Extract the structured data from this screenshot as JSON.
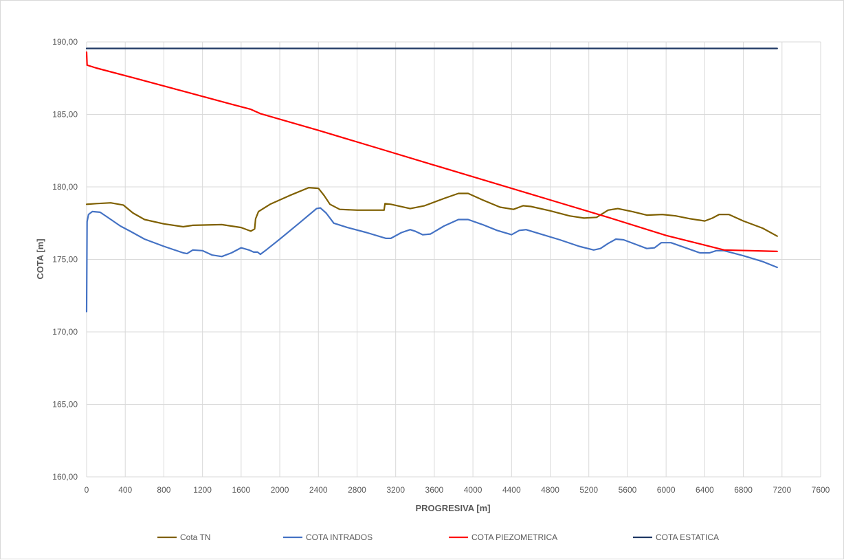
{
  "chart_data": {
    "type": "line",
    "xlabel": "PROGRESIVA [m]",
    "ylabel": "COTA [m]",
    "xlim": [
      0,
      7600
    ],
    "ylim": [
      160,
      190
    ],
    "x_ticks": [
      "0",
      "400",
      "800",
      "1200",
      "1600",
      "2000",
      "2400",
      "2800",
      "3200",
      "3600",
      "4000",
      "4400",
      "4800",
      "5200",
      "5600",
      "6000",
      "6400",
      "6800",
      "7200",
      "7600"
    ],
    "y_ticks": [
      "160,00",
      "165,00",
      "170,00",
      "175,00",
      "180,00",
      "185,00",
      "190,00"
    ],
    "grid": true,
    "legend_position": "bottom",
    "series": [
      {
        "name": "Cota TN",
        "color": "#7f6000",
        "points": [
          [
            0,
            178.8
          ],
          [
            100,
            178.85
          ],
          [
            250,
            178.9
          ],
          [
            380,
            178.75
          ],
          [
            480,
            178.2
          ],
          [
            600,
            177.75
          ],
          [
            800,
            177.45
          ],
          [
            1000,
            177.25
          ],
          [
            1100,
            177.35
          ],
          [
            1400,
            177.4
          ],
          [
            1600,
            177.2
          ],
          [
            1700,
            176.95
          ],
          [
            1740,
            177.1
          ],
          [
            1750,
            177.8
          ],
          [
            1780,
            178.3
          ],
          [
            1900,
            178.8
          ],
          [
            2100,
            179.4
          ],
          [
            2300,
            179.95
          ],
          [
            2400,
            179.9
          ],
          [
            2460,
            179.4
          ],
          [
            2520,
            178.8
          ],
          [
            2620,
            178.45
          ],
          [
            2800,
            178.4
          ],
          [
            3080,
            178.4
          ],
          [
            3090,
            178.85
          ],
          [
            3150,
            178.8
          ],
          [
            3350,
            178.5
          ],
          [
            3500,
            178.7
          ],
          [
            3700,
            179.2
          ],
          [
            3850,
            179.55
          ],
          [
            3950,
            179.55
          ],
          [
            4100,
            179.1
          ],
          [
            4280,
            178.6
          ],
          [
            4420,
            178.45
          ],
          [
            4520,
            178.7
          ],
          [
            4600,
            178.65
          ],
          [
            4800,
            178.35
          ],
          [
            5000,
            178.0
          ],
          [
            5150,
            177.85
          ],
          [
            5280,
            177.9
          ],
          [
            5400,
            178.4
          ],
          [
            5500,
            178.5
          ],
          [
            5650,
            178.3
          ],
          [
            5800,
            178.05
          ],
          [
            5960,
            178.1
          ],
          [
            6100,
            178.0
          ],
          [
            6250,
            177.8
          ],
          [
            6400,
            177.65
          ],
          [
            6480,
            177.85
          ],
          [
            6550,
            178.1
          ],
          [
            6650,
            178.1
          ],
          [
            6800,
            177.65
          ],
          [
            7000,
            177.15
          ],
          [
            7150,
            176.6
          ]
        ]
      },
      {
        "name": "COTA INTRADOS",
        "color": "#4472c4",
        "points": [
          [
            0,
            171.4
          ],
          [
            5,
            177.6
          ],
          [
            20,
            178.1
          ],
          [
            60,
            178.3
          ],
          [
            140,
            178.25
          ],
          [
            230,
            177.85
          ],
          [
            350,
            177.3
          ],
          [
            450,
            176.95
          ],
          [
            600,
            176.4
          ],
          [
            800,
            175.9
          ],
          [
            1000,
            175.45
          ],
          [
            1040,
            175.4
          ],
          [
            1100,
            175.65
          ],
          [
            1200,
            175.6
          ],
          [
            1300,
            175.3
          ],
          [
            1400,
            175.2
          ],
          [
            1500,
            175.45
          ],
          [
            1600,
            175.8
          ],
          [
            1680,
            175.65
          ],
          [
            1730,
            175.5
          ],
          [
            1770,
            175.5
          ],
          [
            1800,
            175.35
          ],
          [
            1850,
            175.6
          ],
          [
            2000,
            176.4
          ],
          [
            2200,
            177.5
          ],
          [
            2380,
            178.5
          ],
          [
            2420,
            178.55
          ],
          [
            2480,
            178.2
          ],
          [
            2560,
            177.5
          ],
          [
            2700,
            177.2
          ],
          [
            2900,
            176.85
          ],
          [
            3100,
            176.45
          ],
          [
            3150,
            176.45
          ],
          [
            3260,
            176.85
          ],
          [
            3350,
            177.05
          ],
          [
            3400,
            176.95
          ],
          [
            3480,
            176.7
          ],
          [
            3560,
            176.75
          ],
          [
            3700,
            177.3
          ],
          [
            3850,
            177.75
          ],
          [
            3950,
            177.75
          ],
          [
            4100,
            177.4
          ],
          [
            4250,
            177.0
          ],
          [
            4400,
            176.7
          ],
          [
            4480,
            177.0
          ],
          [
            4550,
            177.05
          ],
          [
            4700,
            176.75
          ],
          [
            4900,
            176.35
          ],
          [
            5100,
            175.9
          ],
          [
            5250,
            175.65
          ],
          [
            5320,
            175.75
          ],
          [
            5400,
            176.1
          ],
          [
            5480,
            176.4
          ],
          [
            5560,
            176.35
          ],
          [
            5700,
            176.0
          ],
          [
            5800,
            175.75
          ],
          [
            5880,
            175.8
          ],
          [
            5950,
            176.15
          ],
          [
            6050,
            176.15
          ],
          [
            6200,
            175.8
          ],
          [
            6350,
            175.45
          ],
          [
            6450,
            175.45
          ],
          [
            6520,
            175.6
          ],
          [
            6600,
            175.6
          ],
          [
            6800,
            175.25
          ],
          [
            7000,
            174.85
          ],
          [
            7150,
            174.45
          ]
        ]
      },
      {
        "name": "COTA PIEZOMETRICA",
        "color": "#ff0000",
        "points": [
          [
            0,
            189.3
          ],
          [
            5,
            188.4
          ],
          [
            100,
            188.2
          ],
          [
            500,
            187.5
          ],
          [
            1000,
            186.6
          ],
          [
            1500,
            185.7
          ],
          [
            1700,
            185.35
          ],
          [
            1800,
            185.05
          ],
          [
            2400,
            183.9
          ],
          [
            3000,
            182.7
          ],
          [
            3600,
            181.5
          ],
          [
            4200,
            180.3
          ],
          [
            4800,
            179.1
          ],
          [
            5400,
            177.9
          ],
          [
            6000,
            176.65
          ],
          [
            6600,
            175.65
          ],
          [
            7150,
            175.55
          ]
        ]
      },
      {
        "name": "COTA ESTATICA",
        "color": "#1f3864",
        "points": [
          [
            0,
            189.55
          ],
          [
            7150,
            189.55
          ]
        ]
      }
    ]
  }
}
